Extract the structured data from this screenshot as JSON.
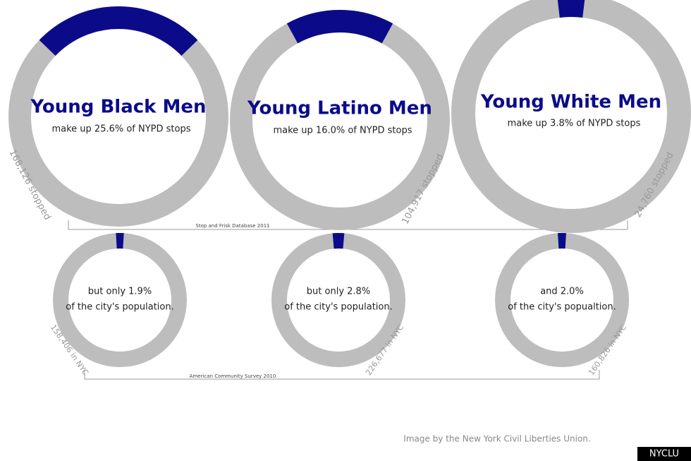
{
  "chart_data": [
    {
      "type": "donut",
      "title": "Young Black Men",
      "text": [
        "make up 25.6% of NYPD stops"
      ],
      "values": [
        25.6
      ],
      "color": "#0b0b8a",
      "annotation": "168,126 stopped"
    },
    {
      "type": "donut",
      "title": "Young Latino Men",
      "text": [
        "make up 16.0% of NYPD stops"
      ],
      "values": [
        16.0
      ],
      "color": "#0b0b8a",
      "annotation": "104,917 stopped"
    },
    {
      "type": "donut",
      "title": "Young White Men",
      "text": [
        "make up 3.8% of NYPD stops"
      ],
      "values": [
        3.8
      ],
      "color": "#0b0b8a",
      "annotation": "24,760 stopped"
    },
    {
      "type": "donut",
      "text": [
        "but only 1.9%",
        "of the city's population."
      ],
      "values": [
        1.9
      ],
      "color": "#0b0b8a",
      "annotation": "158,406 in NYC"
    },
    {
      "type": "donut",
      "text": [
        "but only 2.8%",
        "of the city's population."
      ],
      "values": [
        2.8
      ],
      "color": "#0b0b8a",
      "annotation": "226,677 in NYC"
    },
    {
      "type": "donut",
      "text": [
        "and 2.0%",
        "of the city's popualtion."
      ],
      "values": [
        2.0
      ],
      "color": "#0b0b8a",
      "annotation": "160,826 in NYC"
    }
  ],
  "brackets": [
    "Stop and Frisk Database 2011",
    "American Community Survey 2010"
  ],
  "credit": "Image by the New York Civil Liberties Union.",
  "badge": "NYCLU"
}
